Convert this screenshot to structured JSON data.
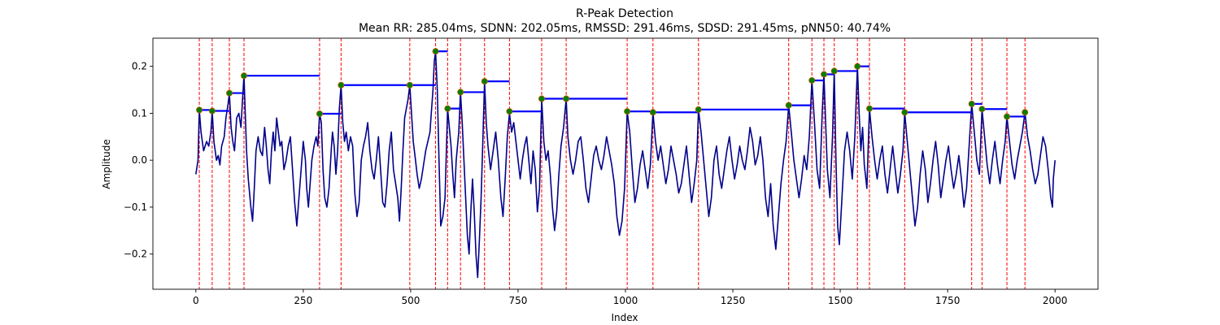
{
  "chart_data": {
    "type": "line",
    "title": "R-Peak Detection",
    "subtitle": "Mean RR: 285.04ms, SDNN: 202.05ms, RMSSD: 291.46ms, SDSD: 291.45ms, pNN50: 40.74%",
    "xlabel": "Index",
    "ylabel": "Amplitude",
    "xlim": [
      -100,
      2100
    ],
    "ylim": [
      -0.275,
      0.26
    ],
    "xticks": [
      0,
      250,
      500,
      750,
      1000,
      1250,
      1500,
      1750,
      2000
    ],
    "yticks": [
      -0.2,
      -0.1,
      0.0,
      0.1,
      0.2
    ],
    "ytick_labels": [
      "−0.2",
      "−0.1",
      "0.0",
      "0.1",
      "0.2"
    ],
    "grid": false,
    "colors": {
      "signal": "#00008b",
      "peak_marker": "#008000",
      "peak_marker_edge": "#c65c00",
      "peak_line": "#ff0000",
      "rr_segment": "#0000ff"
    },
    "signal": [
      [
        0,
        -0.03
      ],
      [
        5,
        0.0
      ],
      [
        8,
        0.107
      ],
      [
        12,
        0.06
      ],
      [
        18,
        0.02
      ],
      [
        25,
        0.04
      ],
      [
        30,
        0.03
      ],
      [
        35,
        0.06
      ],
      [
        38,
        0.105
      ],
      [
        42,
        0.04
      ],
      [
        48,
        0.0
      ],
      [
        52,
        0.01
      ],
      [
        56,
        -0.01
      ],
      [
        60,
        0.03
      ],
      [
        66,
        0.05
      ],
      [
        70,
        0.09
      ],
      [
        75,
        0.12
      ],
      [
        78,
        0.143
      ],
      [
        82,
        0.07
      ],
      [
        86,
        0.04
      ],
      [
        90,
        0.02
      ],
      [
        95,
        0.09
      ],
      [
        100,
        0.1
      ],
      [
        105,
        0.07
      ],
      [
        108,
        0.12
      ],
      [
        112,
        0.18
      ],
      [
        115,
        0.1
      ],
      [
        118,
        0.02
      ],
      [
        122,
        -0.04
      ],
      [
        128,
        -0.1
      ],
      [
        132,
        -0.13
      ],
      [
        136,
        -0.06
      ],
      [
        140,
        0.02
      ],
      [
        145,
        0.05
      ],
      [
        150,
        0.02
      ],
      [
        155,
        0.01
      ],
      [
        160,
        0.07
      ],
      [
        164,
        0.03
      ],
      [
        168,
        -0.02
      ],
      [
        172,
        -0.05
      ],
      [
        176,
        0.02
      ],
      [
        180,
        0.06
      ],
      [
        184,
        0.02
      ],
      [
        188,
        0.09
      ],
      [
        192,
        0.06
      ],
      [
        196,
        0.03
      ],
      [
        200,
        0.04
      ],
      [
        205,
        -0.02
      ],
      [
        210,
        0.0
      ],
      [
        215,
        0.03
      ],
      [
        220,
        0.05
      ],
      [
        225,
        -0.02
      ],
      [
        230,
        -0.09
      ],
      [
        235,
        -0.14
      ],
      [
        240,
        -0.08
      ],
      [
        245,
        -0.02
      ],
      [
        250,
        0.04
      ],
      [
        255,
        0.0
      ],
      [
        258,
        -0.06
      ],
      [
        262,
        -0.1
      ],
      [
        266,
        -0.05
      ],
      [
        270,
        0.0
      ],
      [
        275,
        0.03
      ],
      [
        280,
        0.05
      ],
      [
        284,
        0.03
      ],
      [
        288,
        0.1
      ],
      [
        292,
        0.08
      ],
      [
        296,
        -0.02
      ],
      [
        300,
        -0.08
      ],
      [
        305,
        -0.1
      ],
      [
        310,
        -0.06
      ],
      [
        315,
        0.02
      ],
      [
        318,
        0.06
      ],
      [
        322,
        0.03
      ],
      [
        326,
        -0.03
      ],
      [
        330,
        0.02
      ],
      [
        334,
        0.11
      ],
      [
        338,
        0.16
      ],
      [
        342,
        0.08
      ],
      [
        346,
        0.04
      ],
      [
        350,
        0.06
      ],
      [
        355,
        0.02
      ],
      [
        360,
        0.05
      ],
      [
        365,
        0.03
      ],
      [
        370,
        -0.07
      ],
      [
        375,
        -0.12
      ],
      [
        380,
        -0.09
      ],
      [
        385,
        0.0
      ],
      [
        390,
        0.03
      ],
      [
        395,
        0.05
      ],
      [
        400,
        0.08
      ],
      [
        405,
        0.02
      ],
      [
        410,
        -0.02
      ],
      [
        415,
        -0.04
      ],
      [
        420,
        0.0
      ],
      [
        425,
        0.05
      ],
      [
        430,
        -0.02
      ],
      [
        435,
        -0.09
      ],
      [
        440,
        -0.1
      ],
      [
        445,
        -0.05
      ],
      [
        450,
        0.02
      ],
      [
        455,
        0.06
      ],
      [
        460,
        -0.02
      ],
      [
        465,
        -0.05
      ],
      [
        470,
        -0.08
      ],
      [
        474,
        -0.13
      ],
      [
        478,
        -0.06
      ],
      [
        482,
        0.02
      ],
      [
        486,
        0.09
      ],
      [
        490,
        0.11
      ],
      [
        494,
        0.13
      ],
      [
        498,
        0.16
      ],
      [
        502,
        0.1
      ],
      [
        506,
        0.04
      ],
      [
        510,
        0.01
      ],
      [
        515,
        -0.03
      ],
      [
        520,
        -0.06
      ],
      [
        525,
        -0.04
      ],
      [
        530,
        -0.01
      ],
      [
        535,
        0.02
      ],
      [
        540,
        0.04
      ],
      [
        545,
        0.06
      ],
      [
        548,
        0.1
      ],
      [
        552,
        0.15
      ],
      [
        555,
        0.21
      ],
      [
        558,
        0.232
      ],
      [
        562,
        0.15
      ],
      [
        566,
        0.0
      ],
      [
        570,
        -0.14
      ],
      [
        575,
        -0.12
      ],
      [
        580,
        -0.08
      ],
      [
        586,
        0.11
      ],
      [
        590,
        0.07
      ],
      [
        594,
        0.03
      ],
      [
        598,
        -0.03
      ],
      [
        602,
        -0.08
      ],
      [
        606,
        0.0
      ],
      [
        612,
        0.06
      ],
      [
        616,
        0.145
      ],
      [
        620,
        0.08
      ],
      [
        624,
        0.0
      ],
      [
        628,
        -0.08
      ],
      [
        632,
        -0.16
      ],
      [
        636,
        -0.2
      ],
      [
        640,
        -0.11
      ],
      [
        644,
        -0.04
      ],
      [
        648,
        -0.11
      ],
      [
        652,
        -0.2
      ],
      [
        656,
        -0.25
      ],
      [
        660,
        -0.17
      ],
      [
        664,
        -0.08
      ],
      [
        668,
        0.04
      ],
      [
        672,
        0.168
      ],
      [
        676,
        0.08
      ],
      [
        680,
        0.03
      ],
      [
        686,
        -0.02
      ],
      [
        692,
        0.02
      ],
      [
        698,
        0.06
      ],
      [
        704,
        0.0
      ],
      [
        710,
        -0.08
      ],
      [
        715,
        -0.12
      ],
      [
        720,
        -0.04
      ],
      [
        725,
        0.05
      ],
      [
        730,
        0.1
      ],
      [
        735,
        0.06
      ],
      [
        740,
        0.08
      ],
      [
        745,
        0.04
      ],
      [
        750,
        0.0
      ],
      [
        755,
        -0.04
      ],
      [
        760,
        0.0
      ],
      [
        765,
        0.03
      ],
      [
        770,
        0.05
      ],
      [
        775,
        0.0
      ],
      [
        780,
        -0.05
      ],
      [
        785,
        0.02
      ],
      [
        790,
        -0.02
      ],
      [
        795,
        -0.11
      ],
      [
        800,
        -0.06
      ],
      [
        805,
        0.131
      ],
      [
        810,
        0.04
      ],
      [
        815,
        0.0
      ],
      [
        820,
        0.02
      ],
      [
        825,
        -0.03
      ],
      [
        830,
        -0.1
      ],
      [
        835,
        -0.15
      ],
      [
        840,
        -0.11
      ],
      [
        845,
        -0.03
      ],
      [
        850,
        0.03
      ],
      [
        856,
        0.07
      ],
      [
        862,
        0.131
      ],
      [
        866,
        0.05
      ],
      [
        872,
        0.0
      ],
      [
        878,
        -0.03
      ],
      [
        884,
        0.0
      ],
      [
        890,
        0.04
      ],
      [
        896,
        0.05
      ],
      [
        902,
        0.0
      ],
      [
        908,
        -0.06
      ],
      [
        914,
        -0.09
      ],
      [
        920,
        -0.04
      ],
      [
        926,
        0.01
      ],
      [
        932,
        0.03
      ],
      [
        938,
        0.0
      ],
      [
        944,
        -0.02
      ],
      [
        950,
        0.01
      ],
      [
        956,
        0.05
      ],
      [
        962,
        0.02
      ],
      [
        968,
        -0.01
      ],
      [
        974,
        -0.05
      ],
      [
        980,
        -0.12
      ],
      [
        986,
        -0.16
      ],
      [
        992,
        -0.13
      ],
      [
        998,
        -0.06
      ],
      [
        1004,
        0.104
      ],
      [
        1010,
        0.06
      ],
      [
        1016,
        -0.02
      ],
      [
        1022,
        -0.09
      ],
      [
        1028,
        -0.06
      ],
      [
        1034,
        -0.01
      ],
      [
        1040,
        0.02
      ],
      [
        1046,
        -0.02
      ],
      [
        1052,
        -0.06
      ],
      [
        1058,
        -0.01
      ],
      [
        1064,
        0.102
      ],
      [
        1070,
        0.04
      ],
      [
        1076,
        0.0
      ],
      [
        1082,
        0.03
      ],
      [
        1088,
        -0.01
      ],
      [
        1094,
        -0.05
      ],
      [
        1100,
        -0.02
      ],
      [
        1106,
        0.03
      ],
      [
        1112,
        0.0
      ],
      [
        1118,
        -0.03
      ],
      [
        1124,
        -0.07
      ],
      [
        1130,
        -0.05
      ],
      [
        1136,
        -0.01
      ],
      [
        1142,
        0.03
      ],
      [
        1148,
        -0.03
      ],
      [
        1154,
        -0.09
      ],
      [
        1160,
        -0.05
      ],
      [
        1166,
        0.0
      ],
      [
        1170,
        0.108
      ],
      [
        1176,
        0.06
      ],
      [
        1182,
        0.0
      ],
      [
        1188,
        -0.06
      ],
      [
        1194,
        -0.12
      ],
      [
        1200,
        -0.08
      ],
      [
        1206,
        0.0
      ],
      [
        1212,
        0.03
      ],
      [
        1218,
        -0.03
      ],
      [
        1224,
        -0.06
      ],
      [
        1230,
        -0.02
      ],
      [
        1236,
        0.02
      ],
      [
        1242,
        0.05
      ],
      [
        1248,
        0.0
      ],
      [
        1254,
        -0.04
      ],
      [
        1260,
        -0.01
      ],
      [
        1266,
        0.03
      ],
      [
        1272,
        0.0
      ],
      [
        1278,
        -0.02
      ],
      [
        1284,
        0.02
      ],
      [
        1290,
        0.07
      ],
      [
        1296,
        0.04
      ],
      [
        1302,
        -0.01
      ],
      [
        1308,
        0.01
      ],
      [
        1314,
        0.05
      ],
      [
        1320,
        0.0
      ],
      [
        1326,
        -0.08
      ],
      [
        1332,
        -0.12
      ],
      [
        1338,
        -0.05
      ],
      [
        1344,
        -0.14
      ],
      [
        1350,
        -0.19
      ],
      [
        1356,
        -0.12
      ],
      [
        1362,
        -0.05
      ],
      [
        1368,
        0.0
      ],
      [
        1374,
        0.04
      ],
      [
        1380,
        0.117
      ],
      [
        1386,
        0.06
      ],
      [
        1392,
        0.0
      ],
      [
        1398,
        -0.04
      ],
      [
        1404,
        -0.08
      ],
      [
        1410,
        -0.04
      ],
      [
        1416,
        0.01
      ],
      [
        1422,
        -0.02
      ],
      [
        1428,
        0.05
      ],
      [
        1434,
        0.17
      ],
      [
        1440,
        0.08
      ],
      [
        1446,
        -0.02
      ],
      [
        1452,
        -0.06
      ],
      [
        1458,
        0.1
      ],
      [
        1462,
        0.183
      ],
      [
        1466,
        0.08
      ],
      [
        1470,
        -0.02
      ],
      [
        1476,
        -0.08
      ],
      [
        1482,
        0.05
      ],
      [
        1486,
        0.19
      ],
      [
        1490,
        0.0
      ],
      [
        1494,
        -0.14
      ],
      [
        1498,
        -0.18
      ],
      [
        1504,
        -0.08
      ],
      [
        1510,
        0.02
      ],
      [
        1516,
        0.06
      ],
      [
        1522,
        0.02
      ],
      [
        1528,
        -0.04
      ],
      [
        1534,
        0.05
      ],
      [
        1540,
        0.2
      ],
      [
        1544,
        0.1
      ],
      [
        1548,
        0.02
      ],
      [
        1552,
        0.07
      ],
      [
        1556,
        -0.01
      ],
      [
        1562,
        -0.06
      ],
      [
        1568,
        0.11
      ],
      [
        1574,
        0.05
      ],
      [
        1580,
        0.0
      ],
      [
        1586,
        -0.04
      ],
      [
        1592,
        0.0
      ],
      [
        1598,
        0.03
      ],
      [
        1604,
        -0.03
      ],
      [
        1610,
        -0.07
      ],
      [
        1616,
        -0.02
      ],
      [
        1622,
        0.03
      ],
      [
        1628,
        -0.02
      ],
      [
        1634,
        -0.07
      ],
      [
        1640,
        -0.03
      ],
      [
        1646,
        0.02
      ],
      [
        1650,
        0.102
      ],
      [
        1656,
        0.04
      ],
      [
        1662,
        -0.02
      ],
      [
        1668,
        -0.08
      ],
      [
        1674,
        -0.14
      ],
      [
        1680,
        -0.1
      ],
      [
        1686,
        -0.03
      ],
      [
        1692,
        0.02
      ],
      [
        1698,
        -0.02
      ],
      [
        1704,
        -0.09
      ],
      [
        1710,
        -0.05
      ],
      [
        1716,
        0.0
      ],
      [
        1722,
        0.04
      ],
      [
        1728,
        -0.01
      ],
      [
        1734,
        -0.08
      ],
      [
        1740,
        -0.04
      ],
      [
        1746,
        0.0
      ],
      [
        1752,
        0.03
      ],
      [
        1758,
        -0.02
      ],
      [
        1764,
        -0.06
      ],
      [
        1770,
        -0.03
      ],
      [
        1776,
        0.01
      ],
      [
        1782,
        -0.04
      ],
      [
        1788,
        -0.1
      ],
      [
        1794,
        -0.06
      ],
      [
        1800,
        0.03
      ],
      [
        1806,
        0.12
      ],
      [
        1812,
        0.06
      ],
      [
        1818,
        0.0
      ],
      [
        1824,
        -0.03
      ],
      [
        1830,
        0.109
      ],
      [
        1836,
        0.05
      ],
      [
        1842,
        -0.01
      ],
      [
        1848,
        -0.05
      ],
      [
        1854,
        0.0
      ],
      [
        1860,
        0.04
      ],
      [
        1866,
        -0.01
      ],
      [
        1872,
        -0.05
      ],
      [
        1878,
        0.0
      ],
      [
        1884,
        0.04
      ],
      [
        1888,
        0.093
      ],
      [
        1894,
        0.04
      ],
      [
        1900,
        -0.01
      ],
      [
        1906,
        -0.04
      ],
      [
        1912,
        0.0
      ],
      [
        1918,
        0.03
      ],
      [
        1924,
        0.06
      ],
      [
        1930,
        0.102
      ],
      [
        1936,
        0.05
      ],
      [
        1942,
        0.02
      ],
      [
        1948,
        -0.02
      ],
      [
        1954,
        -0.05
      ],
      [
        1960,
        -0.03
      ],
      [
        1966,
        0.01
      ],
      [
        1972,
        0.05
      ],
      [
        1978,
        0.03
      ],
      [
        1984,
        -0.02
      ],
      [
        1990,
        -0.08
      ],
      [
        1994,
        -0.1
      ],
      [
        1996,
        -0.04
      ],
      [
        2000,
        0.0
      ]
    ],
    "peaks": {
      "x": [
        8,
        38,
        78,
        112,
        288,
        338,
        498,
        558,
        586,
        616,
        672,
        730,
        805,
        862,
        1004,
        1064,
        1170,
        1380,
        1434,
        1462,
        1486,
        1540,
        1568,
        1650,
        1806,
        1830,
        1888,
        1930
      ],
      "y": [
        0.107,
        0.105,
        0.143,
        0.18,
        0.099,
        0.16,
        0.16,
        0.232,
        0.11,
        0.145,
        0.168,
        0.104,
        0.131,
        0.131,
        0.104,
        0.102,
        0.108,
        0.117,
        0.17,
        0.183,
        0.19,
        0.2,
        0.11,
        0.102,
        0.12,
        0.109,
        0.093,
        0.102
      ]
    }
  }
}
